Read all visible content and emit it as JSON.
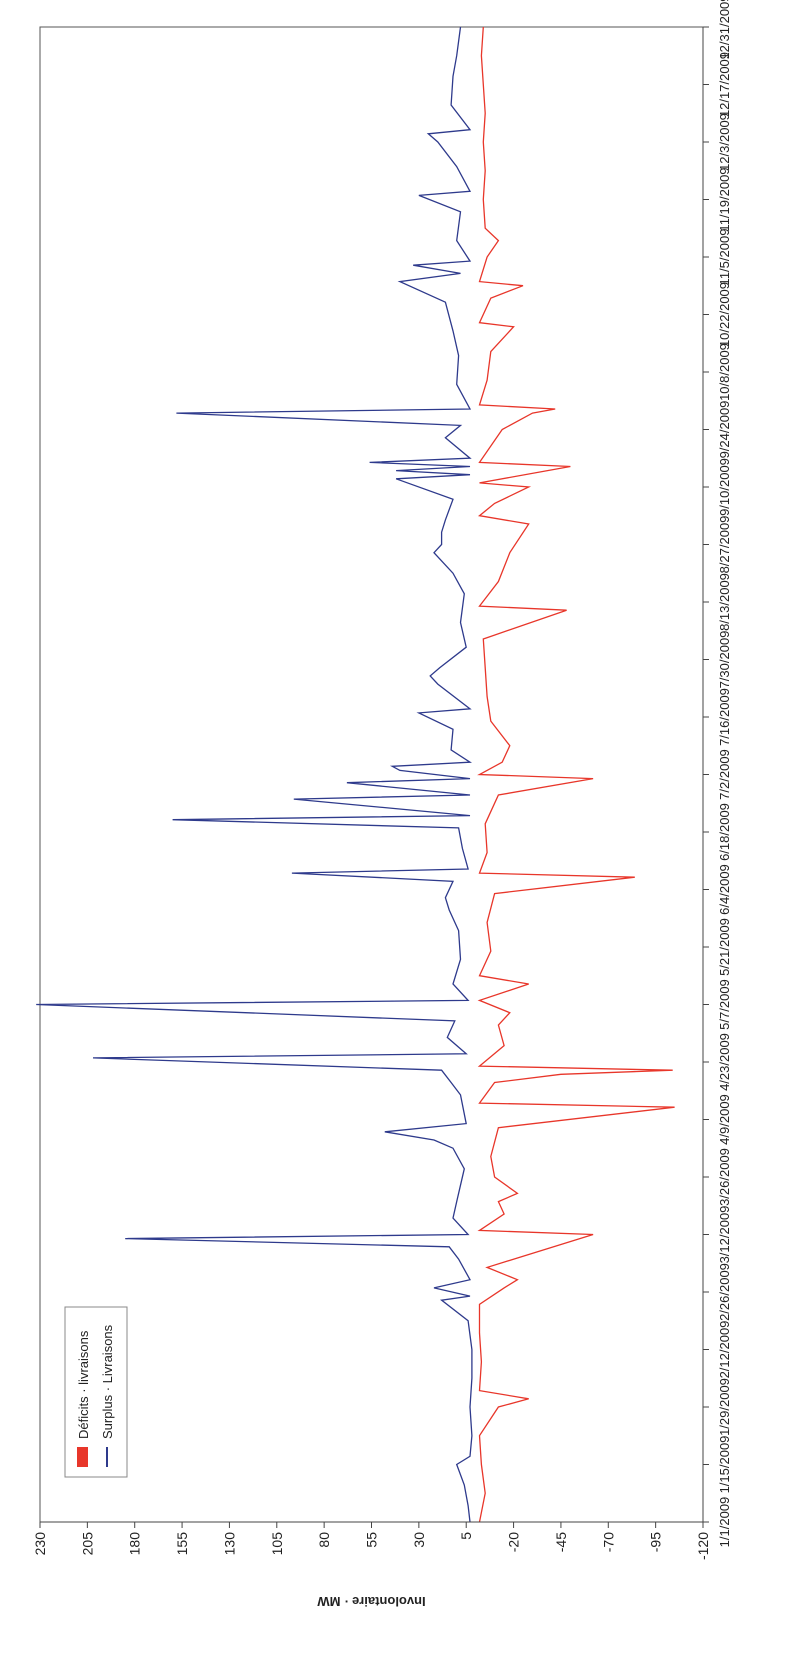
{
  "chart_data": {
    "type": "line",
    "title": "",
    "ylabel": "Involontaire · MW",
    "xlabel": "",
    "ylim": [
      -120,
      230
    ],
    "y_ticks": [
      "230",
      "205",
      "180",
      "155",
      "130",
      "105",
      "80",
      "55",
      "30",
      "5",
      "-20",
      "-45",
      "-70",
      "-95",
      "-120"
    ],
    "x_range": [
      "2009-01-01",
      "2009-12-31"
    ],
    "x_ticks": [
      "1/1/2009",
      "1/15/2009",
      "1/29/2009",
      "2/12/2009",
      "2/26/2009",
      "3/12/2009",
      "3/26/2009",
      "4/9/2009",
      "4/23/2009",
      "5/7/2009",
      "5/21/2009",
      "6/4/2009",
      "6/18/2009",
      "7/2/2009",
      "7/16/2009",
      "7/30/2009",
      "8/13/2009",
      "8/27/2009",
      "9/10/2009",
      "9/24/2009",
      "10/8/2009",
      "10/22/2009",
      "11/5/2009",
      "11/19/2009",
      "12/3/2009",
      "12/17/2009",
      "12/31/2009"
    ],
    "legend_position": "upper-left",
    "grid": false,
    "series": [
      {
        "name": "Surplus · Livraisons",
        "color": "#2e3a8c",
        "legend_marker": "line",
        "points": [
          [
            "2009-01-01",
            3
          ],
          [
            "2009-01-05",
            4
          ],
          [
            "2009-01-10",
            6
          ],
          [
            "2009-01-15",
            10
          ],
          [
            "2009-01-17",
            3
          ],
          [
            "2009-01-22",
            2
          ],
          [
            "2009-01-29",
            3
          ],
          [
            "2009-02-05",
            2
          ],
          [
            "2009-02-12",
            2
          ],
          [
            "2009-02-19",
            4
          ],
          [
            "2009-02-24",
            18
          ],
          [
            "2009-02-25",
            3
          ],
          [
            "2009-02-27",
            22
          ],
          [
            "2009-03-01",
            3
          ],
          [
            "2009-03-06",
            9
          ],
          [
            "2009-03-09",
            14
          ],
          [
            "2009-03-11",
            185
          ],
          [
            "2009-03-12",
            4
          ],
          [
            "2009-03-16",
            12
          ],
          [
            "2009-03-20",
            10
          ],
          [
            "2009-03-24",
            8
          ],
          [
            "2009-03-28",
            6
          ],
          [
            "2009-04-02",
            12
          ],
          [
            "2009-04-04",
            22
          ],
          [
            "2009-04-06",
            48
          ],
          [
            "2009-04-08",
            5
          ],
          [
            "2009-04-15",
            8
          ],
          [
            "2009-04-18",
            13
          ],
          [
            "2009-04-21",
            18
          ],
          [
            "2009-04-24",
            202
          ],
          [
            "2009-04-25",
            5
          ],
          [
            "2009-04-29",
            15
          ],
          [
            "2009-05-03",
            11
          ],
          [
            "2009-05-07",
            232
          ],
          [
            "2009-05-08",
            4
          ],
          [
            "2009-05-12",
            12
          ],
          [
            "2009-05-18",
            8
          ],
          [
            "2009-05-25",
            9
          ],
          [
            "2009-05-30",
            14
          ],
          [
            "2009-06-02",
            16
          ],
          [
            "2009-06-06",
            12
          ],
          [
            "2009-06-08",
            97
          ],
          [
            "2009-06-09",
            4
          ],
          [
            "2009-06-14",
            7
          ],
          [
            "2009-06-19",
            9
          ],
          [
            "2009-06-21",
            160
          ],
          [
            "2009-06-22",
            3
          ],
          [
            "2009-06-26",
            96
          ],
          [
            "2009-06-27",
            3
          ],
          [
            "2009-06-30",
            68
          ],
          [
            "2009-07-01",
            3
          ],
          [
            "2009-07-03",
            40
          ],
          [
            "2009-07-04",
            44
          ],
          [
            "2009-07-05",
            3
          ],
          [
            "2009-07-08",
            13
          ],
          [
            "2009-07-13",
            12
          ],
          [
            "2009-07-17",
            30
          ],
          [
            "2009-07-18",
            3
          ],
          [
            "2009-07-24",
            20
          ],
          [
            "2009-07-26",
            24
          ],
          [
            "2009-07-28",
            19
          ],
          [
            "2009-08-02",
            5
          ],
          [
            "2009-08-08",
            8
          ],
          [
            "2009-08-15",
            6
          ],
          [
            "2009-08-20",
            12
          ],
          [
            "2009-08-25",
            22
          ],
          [
            "2009-08-27",
            18
          ],
          [
            "2009-08-30",
            18
          ],
          [
            "2009-09-02",
            16
          ],
          [
            "2009-09-07",
            12
          ],
          [
            "2009-09-12",
            42
          ],
          [
            "2009-09-13",
            3
          ],
          [
            "2009-09-14",
            42
          ],
          [
            "2009-09-15",
            3
          ],
          [
            "2009-09-16",
            56
          ],
          [
            "2009-09-17",
            3
          ],
          [
            "2009-09-22",
            16
          ],
          [
            "2009-09-25",
            8
          ],
          [
            "2009-09-28",
            158
          ],
          [
            "2009-09-29",
            3
          ],
          [
            "2009-10-05",
            10
          ],
          [
            "2009-10-12",
            9
          ],
          [
            "2009-10-18",
            12
          ],
          [
            "2009-10-25",
            16
          ],
          [
            "2009-10-30",
            40
          ],
          [
            "2009-11-01",
            8
          ],
          [
            "2009-11-03",
            33
          ],
          [
            "2009-11-04",
            3
          ],
          [
            "2009-11-09",
            10
          ],
          [
            "2009-11-16",
            8
          ],
          [
            "2009-11-20",
            30
          ],
          [
            "2009-11-21",
            3
          ],
          [
            "2009-11-27",
            10
          ],
          [
            "2009-12-03",
            20
          ],
          [
            "2009-12-05",
            25
          ],
          [
            "2009-12-06",
            3
          ],
          [
            "2009-12-12",
            13
          ],
          [
            "2009-12-19",
            12
          ],
          [
            "2009-12-24",
            10
          ],
          [
            "2009-12-31",
            8
          ]
        ]
      },
      {
        "name": "Déficits · livraisons",
        "color": "#e8362a",
        "legend_marker": "bar",
        "points": [
          [
            "2009-01-01",
            -2
          ],
          [
            "2009-01-08",
            -5
          ],
          [
            "2009-01-15",
            -3
          ],
          [
            "2009-01-22",
            -2
          ],
          [
            "2009-01-29",
            -12
          ],
          [
            "2009-01-31",
            -28
          ],
          [
            "2009-02-02",
            -2
          ],
          [
            "2009-02-09",
            -3
          ],
          [
            "2009-02-16",
            -2
          ],
          [
            "2009-02-23",
            -2
          ],
          [
            "2009-02-27",
            -15
          ],
          [
            "2009-03-01",
            -22
          ],
          [
            "2009-03-04",
            -6
          ],
          [
            "2009-03-12",
            -62
          ],
          [
            "2009-03-13",
            -2
          ],
          [
            "2009-03-17",
            -15
          ],
          [
            "2009-03-20",
            -12
          ],
          [
            "2009-03-22",
            -22
          ],
          [
            "2009-03-26",
            -10
          ],
          [
            "2009-03-31",
            -8
          ],
          [
            "2009-04-07",
            -12
          ],
          [
            "2009-04-12",
            -105
          ],
          [
            "2009-04-13",
            -2
          ],
          [
            "2009-04-18",
            -10
          ],
          [
            "2009-04-20",
            -45
          ],
          [
            "2009-04-21",
            -104
          ],
          [
            "2009-04-22",
            -2
          ],
          [
            "2009-04-27",
            -15
          ],
          [
            "2009-05-02",
            -12
          ],
          [
            "2009-05-05",
            -18
          ],
          [
            "2009-05-08",
            -2
          ],
          [
            "2009-05-12",
            -28
          ],
          [
            "2009-05-14",
            -2
          ],
          [
            "2009-05-20",
            -8
          ],
          [
            "2009-05-27",
            -6
          ],
          [
            "2009-06-03",
            -10
          ],
          [
            "2009-06-07",
            -84
          ],
          [
            "2009-06-08",
            -2
          ],
          [
            "2009-06-13",
            -6
          ],
          [
            "2009-06-20",
            -5
          ],
          [
            "2009-06-27",
            -12
          ],
          [
            "2009-07-01",
            -62
          ],
          [
            "2009-07-02",
            -2
          ],
          [
            "2009-07-05",
            -14
          ],
          [
            "2009-07-09",
            -18
          ],
          [
            "2009-07-15",
            -8
          ],
          [
            "2009-07-21",
            -6
          ],
          [
            "2009-07-28",
            -5
          ],
          [
            "2009-08-04",
            -4
          ],
          [
            "2009-08-11",
            -48
          ],
          [
            "2009-08-12",
            -2
          ],
          [
            "2009-08-18",
            -12
          ],
          [
            "2009-08-25",
            -18
          ],
          [
            "2009-09-01",
            -28
          ],
          [
            "2009-09-03",
            -2
          ],
          [
            "2009-09-06",
            -10
          ],
          [
            "2009-09-10",
            -28
          ],
          [
            "2009-09-11",
            -2
          ],
          [
            "2009-09-15",
            -50
          ],
          [
            "2009-09-16",
            -2
          ],
          [
            "2009-09-24",
            -14
          ],
          [
            "2009-09-28",
            -30
          ],
          [
            "2009-09-29",
            -42
          ],
          [
            "2009-09-30",
            -2
          ],
          [
            "2009-10-06",
            -6
          ],
          [
            "2009-10-13",
            -8
          ],
          [
            "2009-10-19",
            -20
          ],
          [
            "2009-10-20",
            -2
          ],
          [
            "2009-10-26",
            -8
          ],
          [
            "2009-10-29",
            -25
          ],
          [
            "2009-10-30",
            -2
          ],
          [
            "2009-11-05",
            -6
          ],
          [
            "2009-11-09",
            -12
          ],
          [
            "2009-11-12",
            -5
          ],
          [
            "2009-11-19",
            -4
          ],
          [
            "2009-11-26",
            -5
          ],
          [
            "2009-12-03",
            -4
          ],
          [
            "2009-12-10",
            -5
          ],
          [
            "2009-12-17",
            -4
          ],
          [
            "2009-12-24",
            -3
          ],
          [
            "2009-12-31",
            -4
          ]
        ]
      }
    ]
  }
}
